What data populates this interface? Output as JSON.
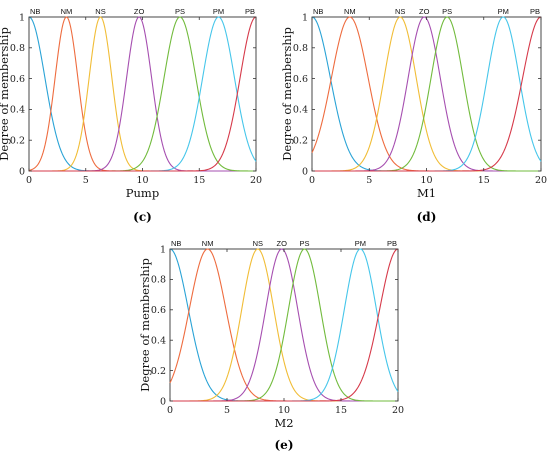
{
  "series_colors": {
    "NB": "#2aa3d6",
    "NM": "#ee6c3f",
    "NS": "#f1bd37",
    "ZO": "#a64fb0",
    "PS": "#72bb3d",
    "PM": "#46c6ea",
    "PB": "#d63a4a"
  },
  "chart_data": [
    {
      "type": "line",
      "panel_label": "(c)",
      "xlabel": "Pump",
      "ylabel": "Degree of membership",
      "xlim": [
        0,
        20
      ],
      "ylim": [
        0,
        1
      ],
      "x_ticks": [
        "0",
        "5",
        "10",
        "15",
        "20"
      ],
      "y_ticks": [
        "0",
        "0.2",
        "0.4",
        "0.6",
        "0.8",
        "1"
      ],
      "grid": false,
      "mf_type": "gaussian",
      "series": [
        {
          "name": "NB",
          "center": 0,
          "sigma": 1.4
        },
        {
          "name": "NM",
          "center": 3.3,
          "sigma": 1.0
        },
        {
          "name": "NS",
          "center": 6.3,
          "sigma": 1.0
        },
        {
          "name": "ZO",
          "center": 9.7,
          "sigma": 1.1
        },
        {
          "name": "PS",
          "center": 13.3,
          "sigma": 1.4
        },
        {
          "name": "PM",
          "center": 16.7,
          "sigma": 1.4
        },
        {
          "name": "PB",
          "center": 20,
          "sigma": 1.4
        }
      ]
    },
    {
      "type": "line",
      "panel_label": "(d)",
      "xlabel": "M1",
      "ylabel": "Degree of membership",
      "xlim": [
        0,
        20
      ],
      "ylim": [
        0,
        1
      ],
      "x_ticks": [
        "0",
        "5",
        "10",
        "15",
        "20"
      ],
      "y_ticks": [
        "0",
        "0.2",
        "0.4",
        "0.6",
        "0.8",
        "1"
      ],
      "grid": false,
      "mf_type": "gaussian",
      "series": [
        {
          "name": "NB",
          "center": 0,
          "sigma": 1.6
        },
        {
          "name": "NM",
          "center": 3.3,
          "sigma": 1.6
        },
        {
          "name": "NS",
          "center": 7.7,
          "sigma": 1.4
        },
        {
          "name": "ZO",
          "center": 9.8,
          "sigma": 1.4
        },
        {
          "name": "PS",
          "center": 11.8,
          "sigma": 1.4
        },
        {
          "name": "PM",
          "center": 16.7,
          "sigma": 1.4
        },
        {
          "name": "PB",
          "center": 20,
          "sigma": 1.6
        }
      ]
    },
    {
      "type": "line",
      "panel_label": "(e)",
      "xlabel": "M2",
      "ylabel": "Degree of membership",
      "xlim": [
        0,
        20
      ],
      "ylim": [
        0,
        1
      ],
      "x_ticks": [
        "0",
        "5",
        "10",
        "15",
        "20"
      ],
      "y_ticks": [
        "0",
        "0.2",
        "0.4",
        "0.6",
        "0.8",
        "1"
      ],
      "grid": false,
      "mf_type": "gaussian",
      "series": [
        {
          "name": "NB",
          "center": 0,
          "sigma": 1.6
        },
        {
          "name": "NM",
          "center": 3.3,
          "sigma": 1.6
        },
        {
          "name": "NS",
          "center": 7.7,
          "sigma": 1.4
        },
        {
          "name": "ZO",
          "center": 9.8,
          "sigma": 1.4
        },
        {
          "name": "PS",
          "center": 11.8,
          "sigma": 1.4
        },
        {
          "name": "PM",
          "center": 16.7,
          "sigma": 1.4
        },
        {
          "name": "PB",
          "center": 20,
          "sigma": 1.6
        }
      ]
    }
  ]
}
